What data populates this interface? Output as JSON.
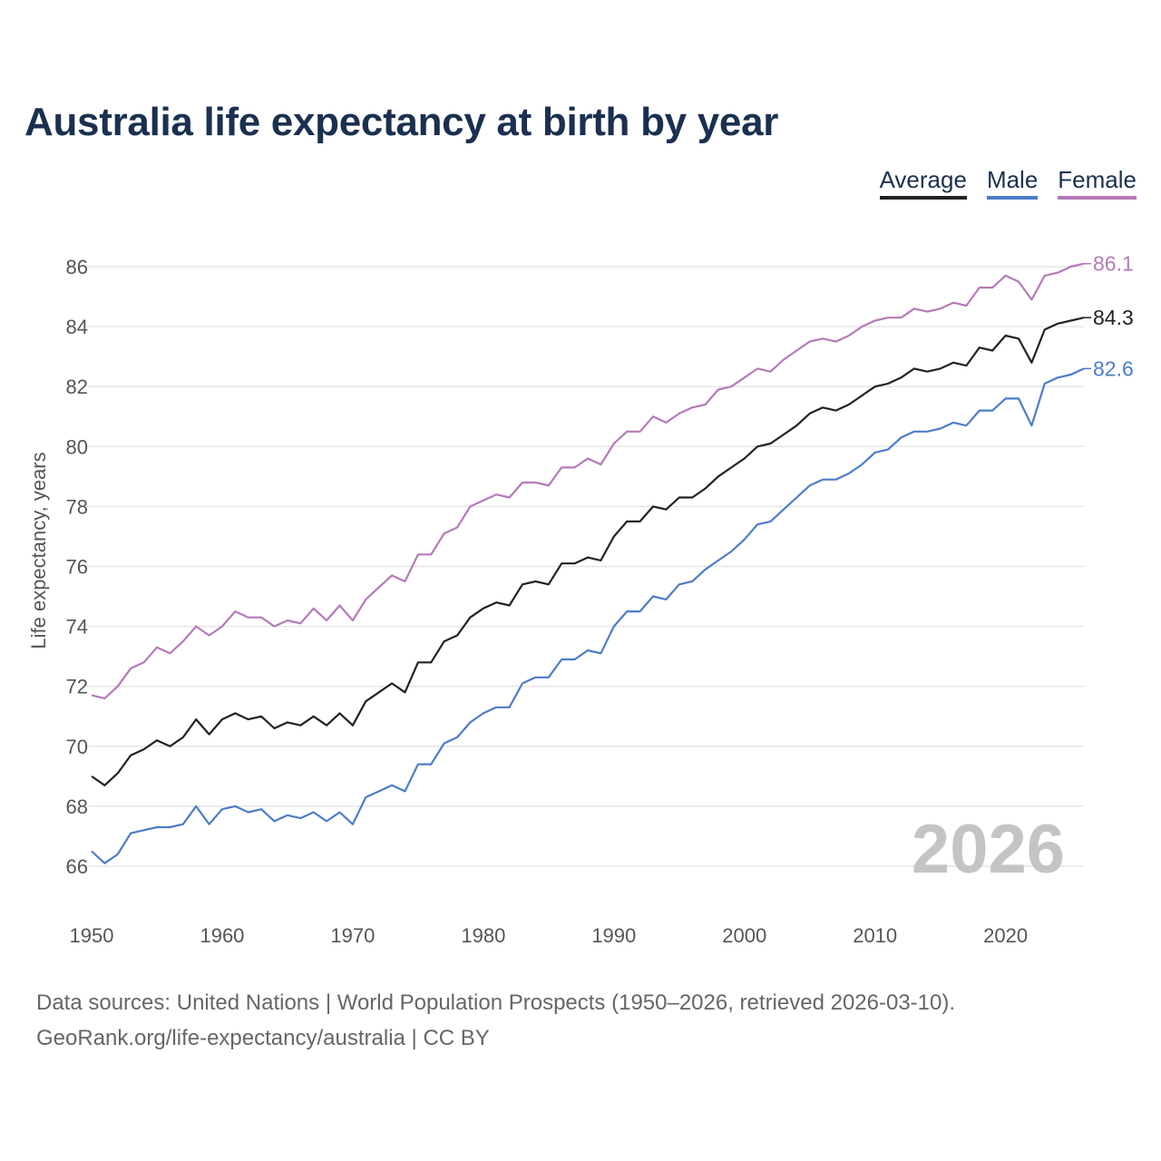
{
  "title": "Australia life expectancy at birth by year",
  "footer": {
    "line1": "Data sources: United Nations | World Population Prospects (1950–2026, retrieved 2026-03-10).",
    "line2": "GeoRank.org/life-expectancy/australia | CC BY"
  },
  "chart_data": {
    "type": "line",
    "title": "Australia life expectancy at birth by year",
    "xlabel": "",
    "ylabel": "Life expectancy, years",
    "xlim": [
      1950,
      2026
    ],
    "ylim": [
      65,
      87
    ],
    "x_ticks": [
      1950,
      1960,
      1970,
      1980,
      1990,
      2000,
      2010,
      2020
    ],
    "y_ticks": [
      66,
      68,
      70,
      72,
      74,
      76,
      78,
      80,
      82,
      84,
      86
    ],
    "grid": true,
    "legend_position": "top-right",
    "watermark": "2026",
    "x_start": 1950,
    "series": [
      {
        "name": "Average",
        "color": "#222222",
        "end_label": "84.3",
        "values": [
          69.0,
          68.7,
          69.1,
          69.7,
          69.9,
          70.2,
          70.0,
          70.3,
          70.9,
          70.4,
          70.9,
          71.1,
          70.9,
          71.0,
          70.6,
          70.8,
          70.7,
          71.0,
          70.7,
          71.1,
          70.7,
          71.5,
          71.8,
          72.1,
          71.8,
          72.8,
          72.8,
          73.5,
          73.7,
          74.3,
          74.6,
          74.8,
          74.7,
          75.4,
          75.5,
          75.4,
          76.1,
          76.1,
          76.3,
          76.2,
          77.0,
          77.5,
          77.5,
          78.0,
          77.9,
          78.3,
          78.3,
          78.6,
          79.0,
          79.3,
          79.6,
          80.0,
          80.1,
          80.4,
          80.7,
          81.1,
          81.3,
          81.2,
          81.4,
          81.7,
          82.0,
          82.1,
          82.3,
          82.6,
          82.5,
          82.6,
          82.8,
          82.7,
          83.3,
          83.2,
          83.7,
          83.6,
          82.8,
          83.9,
          84.1,
          84.2,
          84.3
        ]
      },
      {
        "name": "Male",
        "color": "#4d7cc9",
        "end_label": "82.6",
        "values": [
          66.5,
          66.1,
          66.4,
          67.1,
          67.2,
          67.3,
          67.3,
          67.4,
          68.0,
          67.4,
          67.9,
          68.0,
          67.8,
          67.9,
          67.5,
          67.7,
          67.6,
          67.8,
          67.5,
          67.8,
          67.4,
          68.3,
          68.5,
          68.7,
          68.5,
          69.4,
          69.4,
          70.1,
          70.3,
          70.8,
          71.1,
          71.3,
          71.3,
          72.1,
          72.3,
          72.3,
          72.9,
          72.9,
          73.2,
          73.1,
          74.0,
          74.5,
          74.5,
          75.0,
          74.9,
          75.4,
          75.5,
          75.9,
          76.2,
          76.5,
          76.9,
          77.4,
          77.5,
          77.9,
          78.3,
          78.7,
          78.9,
          78.9,
          79.1,
          79.4,
          79.8,
          79.9,
          80.3,
          80.5,
          80.5,
          80.6,
          80.8,
          80.7,
          81.2,
          81.2,
          81.6,
          81.6,
          80.7,
          82.1,
          82.3,
          82.4,
          82.6
        ]
      },
      {
        "name": "Female",
        "color": "#b57ab8",
        "end_label": "86.1",
        "values": [
          71.7,
          71.6,
          72.0,
          72.6,
          72.8,
          73.3,
          73.1,
          73.5,
          74.0,
          73.7,
          74.0,
          74.5,
          74.3,
          74.3,
          74.0,
          74.2,
          74.1,
          74.6,
          74.2,
          74.7,
          74.2,
          74.9,
          75.3,
          75.7,
          75.5,
          76.4,
          76.4,
          77.1,
          77.3,
          78.0,
          78.2,
          78.4,
          78.3,
          78.8,
          78.8,
          78.7,
          79.3,
          79.3,
          79.6,
          79.4,
          80.1,
          80.5,
          80.5,
          81.0,
          80.8,
          81.1,
          81.3,
          81.4,
          81.9,
          82.0,
          82.3,
          82.6,
          82.5,
          82.9,
          83.2,
          83.5,
          83.6,
          83.5,
          83.7,
          84.0,
          84.2,
          84.3,
          84.3,
          84.6,
          84.5,
          84.6,
          84.8,
          84.7,
          85.3,
          85.3,
          85.7,
          85.5,
          84.9,
          85.7,
          85.8,
          86.0,
          86.1
        ]
      }
    ]
  }
}
